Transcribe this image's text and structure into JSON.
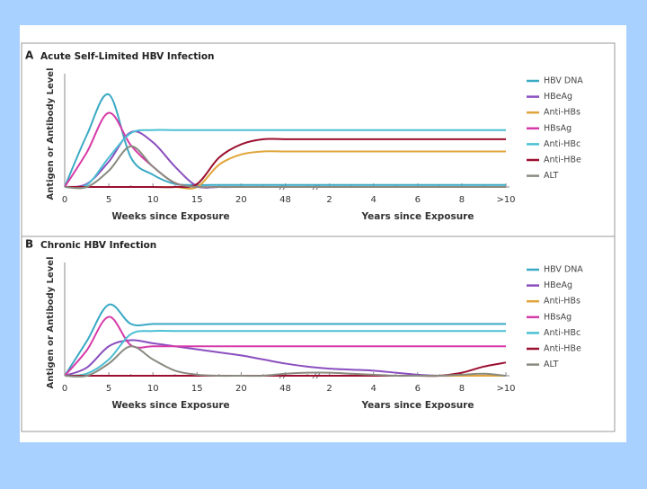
{
  "chart_data": [
    {
      "type": "line",
      "panel": "A",
      "title": "Acute Self-Limited HBV Infection",
      "ylabel": "Antigen or Antibody Level",
      "xlabels": [
        "Weeks since Exposure",
        "Years since Exposure"
      ],
      "categories": [
        "0",
        null,
        "5",
        null,
        "10",
        null,
        "15",
        null,
        "20",
        null,
        "48",
        null,
        "2",
        null,
        "4",
        null,
        "6",
        null,
        "8",
        null,
        ">10"
      ],
      "ylim": [
        0,
        100
      ],
      "series": [
        {
          "name": "HBV DNA",
          "color": "#3aa9c4",
          "values": [
            0,
            51,
            91,
            29,
            12,
            3,
            2,
            2,
            2,
            2,
            2,
            2,
            2,
            2,
            2,
            2,
            2,
            2,
            2,
            2,
            2
          ]
        },
        {
          "name": "HBeAg",
          "color": "#8a4fbf",
          "values": [
            0,
            3,
            25,
            54,
            44,
            20,
            1,
            0,
            0,
            0,
            0,
            0,
            0,
            0,
            0,
            0,
            0,
            0,
            0,
            0,
            0
          ]
        },
        {
          "name": "Anti-HBs",
          "color": "#e0a53a",
          "values": [
            0,
            0,
            0,
            0,
            0,
            0,
            0,
            22,
            32,
            35,
            35,
            35,
            35,
            35,
            35,
            35,
            35,
            35,
            35,
            35,
            35
          ]
        },
        {
          "name": "HBsAg",
          "color": "#d63aa8",
          "values": [
            0,
            34,
            73,
            41,
            20,
            4,
            0,
            0,
            0,
            0,
            0,
            0,
            0,
            0,
            0,
            0,
            0,
            0,
            0,
            0,
            0
          ]
        },
        {
          "name": "Anti-HBc",
          "color": "#4cc0d4",
          "values": [
            0,
            2,
            29,
            53,
            56,
            56,
            56,
            56,
            56,
            56,
            56,
            56,
            56,
            56,
            56,
            56,
            56,
            56,
            56,
            56,
            56
          ]
        },
        {
          "name": "Anti-HBe",
          "color": "#9b1030",
          "values": [
            0,
            0,
            0,
            0,
            0,
            0,
            3,
            29,
            42,
            47,
            47,
            47,
            47,
            47,
            47,
            47,
            47,
            47,
            47,
            47,
            47
          ]
        },
        {
          "name": "ALT",
          "color": "#8a8a80",
          "values": [
            0,
            0,
            16,
            40,
            20,
            4,
            0,
            0,
            0,
            0,
            0,
            0,
            0,
            0,
            0,
            0,
            0,
            0,
            0,
            0,
            0
          ]
        }
      ]
    },
    {
      "type": "line",
      "panel": "B",
      "title": "Chronic HBV Infection",
      "ylabel": "Antigen or Antibody Level",
      "xlabels": [
        "Weeks since Exposure",
        "Years since Exposure"
      ],
      "categories": [
        "0",
        null,
        "5",
        null,
        "10",
        null,
        "15",
        null,
        "20",
        null,
        "48",
        null,
        "2",
        null,
        "4",
        null,
        "6",
        null,
        "8",
        null,
        ">10"
      ],
      "ylim": [
        0,
        100
      ],
      "series": [
        {
          "name": "HBV DNA",
          "color": "#3aa9c4",
          "values": [
            0,
            34,
            70,
            51,
            51,
            51,
            51,
            51,
            51,
            51,
            51,
            51,
            51,
            51,
            51,
            51,
            51,
            51,
            51,
            51,
            51
          ]
        },
        {
          "name": "HBeAg",
          "color": "#8a4fbf",
          "values": [
            0,
            8,
            29,
            35,
            32,
            29,
            26,
            23,
            20,
            16,
            12,
            9,
            7,
            6,
            5,
            3,
            1,
            0,
            0,
            0,
            0
          ]
        },
        {
          "name": "Anti-HBs",
          "color": "#e0a53a",
          "values": [
            0,
            0,
            0,
            0,
            0,
            0,
            0,
            0,
            0,
            0,
            0,
            0,
            0,
            0,
            0,
            0,
            0,
            0,
            0,
            0,
            0
          ]
        },
        {
          "name": "HBsAg",
          "color": "#d63aa8",
          "values": [
            0,
            25,
            58,
            30,
            29,
            29,
            29,
            29,
            29,
            29,
            29,
            29,
            29,
            29,
            29,
            29,
            29,
            29,
            29,
            29,
            29
          ]
        },
        {
          "name": "Anti-HBc",
          "color": "#4cc0d4",
          "values": [
            0,
            2,
            16,
            41,
            44,
            44,
            44,
            44,
            44,
            44,
            44,
            44,
            44,
            44,
            44,
            44,
            44,
            44,
            44,
            44,
            44
          ]
        },
        {
          "name": "Anti-HBe",
          "color": "#9b1030",
          "values": [
            0,
            0,
            0,
            0,
            0,
            0,
            0,
            0,
            0,
            0,
            0,
            0,
            0,
            0,
            0,
            0,
            0,
            0,
            3,
            9,
            13
          ]
        },
        {
          "name": "ALT",
          "color": "#8a8a80",
          "values": [
            0,
            0,
            12,
            29,
            16,
            5,
            1,
            0,
            0,
            0,
            2,
            3,
            3,
            2,
            1,
            0,
            0,
            0,
            1,
            2,
            0
          ]
        }
      ]
    }
  ]
}
